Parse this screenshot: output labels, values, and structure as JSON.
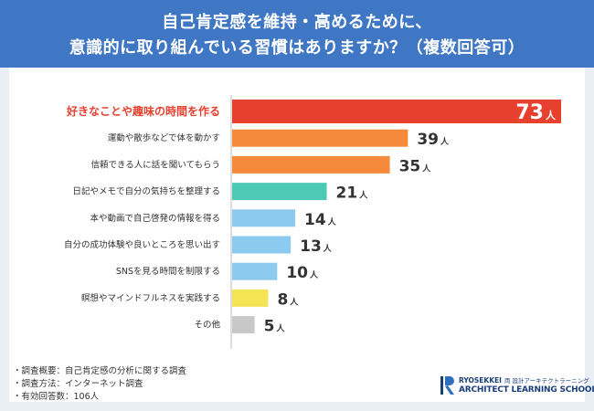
{
  "title": {
    "line1": "自己肯定感を維持・高めるために、",
    "line2": "意識的に取り組んでいる習慣はありますか？（複数回答可）"
  },
  "chart_data": {
    "type": "bar",
    "orientation": "horizontal",
    "categories": [
      "好きなことや趣味の時間を作る",
      "運動や散歩などで体を動かす",
      "信頼できる人に話を聞いてもらう",
      "日記やメモで自分の気持ちを整理する",
      "本や動画で自己啓発の情報を得る",
      "自分の成功体験や良いところを思い出す",
      "SNSを見る時間を制限する",
      "瞑想やマインドフルネスを実践する",
      "その他"
    ],
    "values": [
      73,
      39,
      35,
      21,
      14,
      13,
      10,
      8,
      5
    ],
    "unit": "人",
    "colors": [
      "#e8402e",
      "#f58a3d",
      "#f58a3d",
      "#4ec9b5",
      "#8ccaf0",
      "#8ccaf0",
      "#8ccaf0",
      "#f4e455",
      "#c8c8c8"
    ],
    "highlight_label_color": "#e8402e",
    "xlim": [
      0,
      73
    ]
  },
  "notes": [
    "・調査概要：自己肯定感の分析に関する調査",
    "・調査方法：インターネット調査",
    "・有効回答数：106人"
  ],
  "logo": {
    "brand": "RYOSEKKEI",
    "brand_jp": "両 設計アーキテクトラーニング",
    "school": "ARCHITECT LEARNING SCHOOL"
  }
}
